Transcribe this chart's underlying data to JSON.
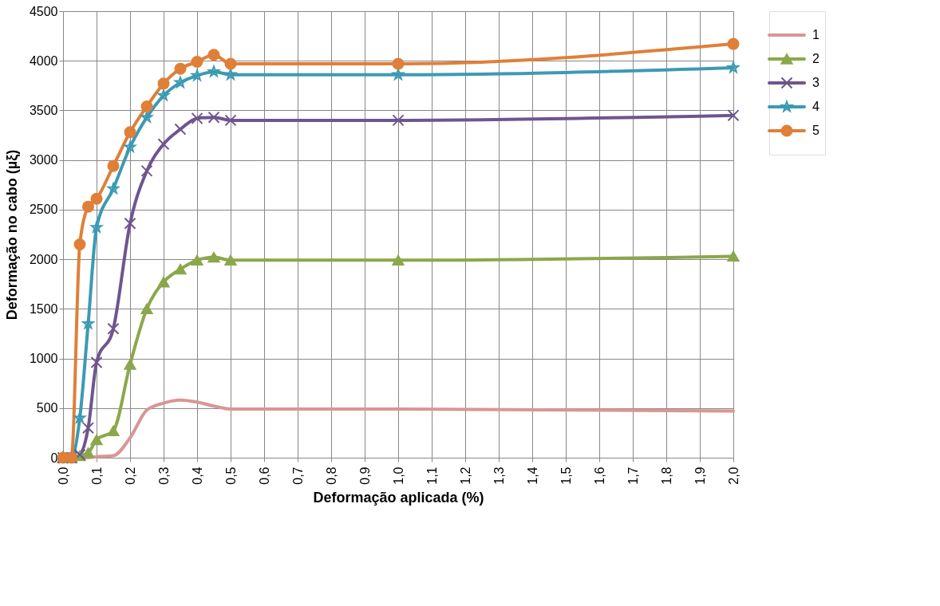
{
  "chart_data": {
    "type": "line",
    "xlabel": "Deformação aplicada (%)",
    "ylabel": "Deformação no cabo (µξ)",
    "x": [
      0,
      0.025,
      0.05,
      0.075,
      0.1,
      0.15,
      0.2,
      0.25,
      0.3,
      0.35,
      0.4,
      0.45,
      0.5,
      1.0,
      2.0
    ],
    "series": [
      {
        "name": "1",
        "color": "#d99694",
        "marker": "none",
        "values": [
          0,
          0,
          0,
          0,
          10,
          20,
          200,
          480,
          550,
          580,
          560,
          520,
          490,
          490,
          470
        ]
      },
      {
        "name": "2",
        "color": "#8aa84b",
        "marker": "triangle",
        "values": [
          0,
          0,
          20,
          50,
          180,
          270,
          940,
          1500,
          1770,
          1900,
          1990,
          2020,
          1990,
          1990,
          2030
        ]
      },
      {
        "name": "3",
        "color": "#6e558f",
        "marker": "cross",
        "values": [
          0,
          0,
          30,
          300,
          960,
          1300,
          2360,
          2890,
          3160,
          3310,
          3420,
          3430,
          3400,
          3400,
          3450
        ]
      },
      {
        "name": "4",
        "color": "#3c9ab3",
        "marker": "star",
        "values": [
          0,
          0,
          400,
          1350,
          2320,
          2710,
          3130,
          3430,
          3650,
          3780,
          3850,
          3890,
          3860,
          3860,
          3930
        ]
      },
      {
        "name": "5",
        "color": "#e07f38",
        "marker": "circle",
        "values": [
          0,
          0,
          2150,
          2530,
          2610,
          2940,
          3280,
          3540,
          3770,
          3920,
          3990,
          4060,
          3970,
          3970,
          4170
        ]
      }
    ],
    "xlim": [
      0,
      2.0
    ],
    "xticks": [
      {
        "value": 0,
        "label": "0,0"
      },
      {
        "value": 0.1,
        "label": "0,1"
      },
      {
        "value": 0.2,
        "label": "0,2"
      },
      {
        "value": 0.3,
        "label": "0,3"
      },
      {
        "value": 0.4,
        "label": "0,4"
      },
      {
        "value": 0.5,
        "label": "0,5"
      },
      {
        "value": 0.6,
        "label": "0,6"
      },
      {
        "value": 0.7,
        "label": "0,7"
      },
      {
        "value": 0.8,
        "label": "0,8"
      },
      {
        "value": 0.9,
        "label": "0,9"
      },
      {
        "value": 1.0,
        "label": "1,0"
      },
      {
        "value": 1.1,
        "label": "1,1"
      },
      {
        "value": 1.2,
        "label": "1,2"
      },
      {
        "value": 1.3,
        "label": "1,3"
      },
      {
        "value": 1.4,
        "label": "1,4"
      },
      {
        "value": 1.5,
        "label": "1,5"
      },
      {
        "value": 1.6,
        "label": "1,6"
      },
      {
        "value": 1.7,
        "label": "1,7"
      },
      {
        "value": 1.8,
        "label": "1,8"
      },
      {
        "value": 1.9,
        "label": "1,9"
      },
      {
        "value": 2.0,
        "label": "2,0"
      }
    ],
    "ylim": [
      0,
      4500
    ],
    "yticks": [
      0,
      500,
      1000,
      1500,
      2000,
      2500,
      3000,
      3500,
      4000,
      4500
    ],
    "grid": true,
    "legend": "right",
    "line_style": "solid"
  }
}
